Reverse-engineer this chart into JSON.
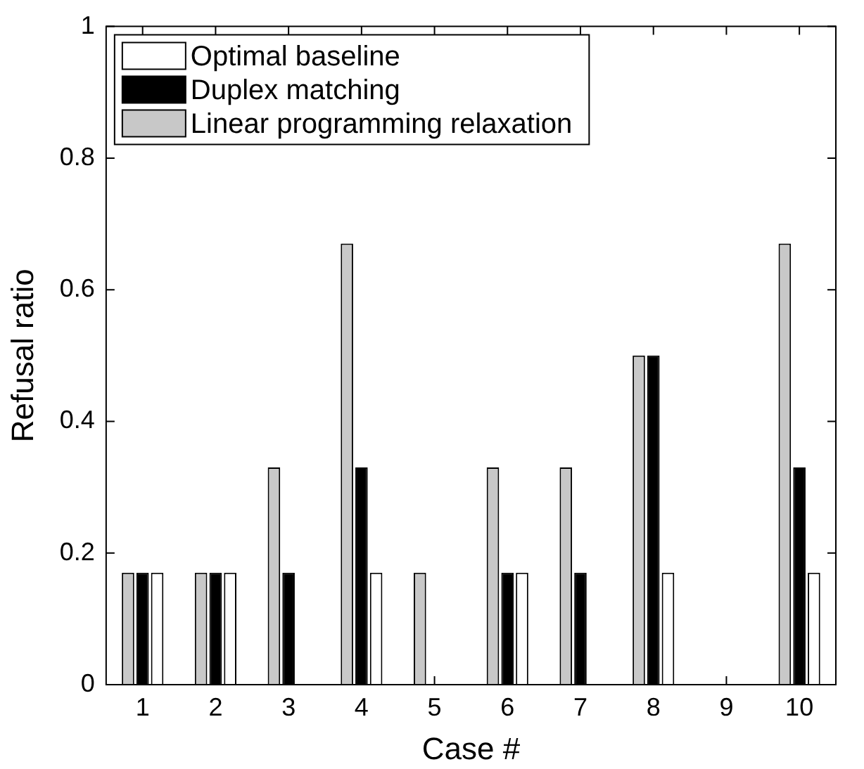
{
  "chart_data": {
    "type": "bar",
    "xlabel": "Case #",
    "ylabel": "Refusal ratio",
    "categories": [
      "1",
      "2",
      "3",
      "4",
      "5",
      "6",
      "7",
      "8",
      "9",
      "10"
    ],
    "series": [
      {
        "name": "Linear programming relaxation",
        "color": "#c8c8c8",
        "values": [
          0.17,
          0.17,
          0.33,
          0.67,
          0.17,
          0.33,
          0.33,
          0.5,
          0,
          0.67
        ]
      },
      {
        "name": "Duplex matching",
        "color": "#000000",
        "values": [
          0.17,
          0.17,
          0.17,
          0.33,
          0,
          0.17,
          0.17,
          0.5,
          0,
          0.33
        ]
      },
      {
        "name": "Optimal baseline",
        "color": "#ffffff",
        "values": [
          0.17,
          0.17,
          0,
          0.17,
          0,
          0.17,
          0,
          0.17,
          0,
          0.17
        ]
      }
    ],
    "ylim": [
      0,
      1
    ],
    "yticks": [
      0,
      0.2,
      0.4,
      0.6,
      0.8,
      1
    ],
    "grid": false,
    "legend": "top left"
  }
}
